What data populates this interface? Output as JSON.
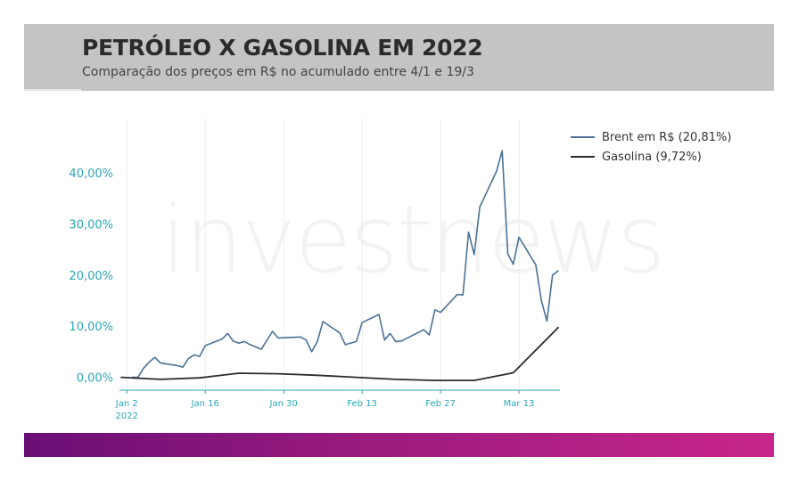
{
  "header": {
    "title": "PETRÓLEO X GASOLINA EM 2022",
    "subtitle": "Comparação dos preços em R$ no acumulado entre 4/1 e 19/3"
  },
  "watermark": "investnews",
  "chart_data": {
    "type": "line",
    "ylim": [
      -2.5,
      48
    ],
    "yticks": [
      0,
      10,
      20,
      30,
      40
    ],
    "ytick_labels": [
      "0,00%",
      "10,00%",
      "20,00%",
      "30,00%",
      "40,00%"
    ],
    "xlim": [
      "2022-01-01",
      "2022-03-20"
    ],
    "xticks": [
      {
        "date": "2022-01-02",
        "label": "Jan 2",
        "label2": "2022"
      },
      {
        "date": "2022-01-16",
        "label": "Jan 16",
        "label2": ""
      },
      {
        "date": "2022-01-30",
        "label": "Jan 30",
        "label2": ""
      },
      {
        "date": "2022-02-13",
        "label": "Feb 13",
        "label2": ""
      },
      {
        "date": "2022-02-27",
        "label": "Feb 27",
        "label2": ""
      },
      {
        "date": "2022-03-13",
        "label": "Mar 13",
        "label2": ""
      }
    ],
    "legend_position": "top-right",
    "series": [
      {
        "name": "Brent em R$ (20,81%)",
        "color": "#4b7297",
        "points": [
          [
            "2022-01-03",
            0.0
          ],
          [
            "2022-01-04",
            0.0
          ],
          [
            "2022-01-05",
            1.8
          ],
          [
            "2022-01-06",
            3.0
          ],
          [
            "2022-01-07",
            3.9
          ],
          [
            "2022-01-08",
            2.8
          ],
          [
            "2022-01-11",
            2.3
          ],
          [
            "2022-01-12",
            2.0
          ],
          [
            "2022-01-13",
            3.7
          ],
          [
            "2022-01-14",
            4.4
          ],
          [
            "2022-01-15",
            4.1
          ],
          [
            "2022-01-16",
            6.2
          ],
          [
            "2022-01-19",
            7.5
          ],
          [
            "2022-01-20",
            8.6
          ],
          [
            "2022-01-21",
            7.1
          ],
          [
            "2022-01-22",
            6.7
          ],
          [
            "2022-01-23",
            7.0
          ],
          [
            "2022-01-24",
            6.4
          ],
          [
            "2022-01-26",
            5.5
          ],
          [
            "2022-01-28",
            9.0
          ],
          [
            "2022-01-29",
            7.7
          ],
          [
            "2022-02-02",
            7.9
          ],
          [
            "2022-02-03",
            7.3
          ],
          [
            "2022-02-04",
            5.0
          ],
          [
            "2022-02-05",
            7.0
          ],
          [
            "2022-02-06",
            10.9
          ],
          [
            "2022-02-09",
            8.7
          ],
          [
            "2022-02-10",
            6.4
          ],
          [
            "2022-02-12",
            7.0
          ],
          [
            "2022-02-13",
            10.7
          ],
          [
            "2022-02-16",
            12.3
          ],
          [
            "2022-02-17",
            7.3
          ],
          [
            "2022-02-18",
            8.6
          ],
          [
            "2022-02-19",
            7.0
          ],
          [
            "2022-02-20",
            7.1
          ],
          [
            "2022-02-24",
            9.3
          ],
          [
            "2022-02-25",
            8.3
          ],
          [
            "2022-02-26",
            13.2
          ],
          [
            "2022-02-27",
            12.7
          ],
          [
            "2022-03-02",
            16.2
          ],
          [
            "2022-03-03",
            16.1
          ],
          [
            "2022-03-04",
            28.4
          ],
          [
            "2022-03-05",
            24.0
          ],
          [
            "2022-03-06",
            33.3
          ],
          [
            "2022-03-09",
            40.3
          ],
          [
            "2022-03-10",
            44.3
          ],
          [
            "2022-03-11",
            24.2
          ],
          [
            "2022-03-12",
            22.1
          ],
          [
            "2022-03-13",
            27.4
          ],
          [
            "2022-03-16",
            22.0
          ],
          [
            "2022-03-17",
            15.0
          ],
          [
            "2022-03-18",
            11.0
          ],
          [
            "2022-03-19",
            20.0
          ],
          [
            "2022-03-20",
            20.81
          ]
        ]
      },
      {
        "name": "Gasolina (9,72%)",
        "color": "#2c2c2c",
        "points": [
          [
            "2022-01-01",
            0.0
          ],
          [
            "2022-01-08",
            -0.4
          ],
          [
            "2022-01-15",
            -0.1
          ],
          [
            "2022-01-22",
            0.8
          ],
          [
            "2022-01-29",
            0.7
          ],
          [
            "2022-02-05",
            0.4
          ],
          [
            "2022-02-12",
            0.0
          ],
          [
            "2022-02-19",
            -0.4
          ],
          [
            "2022-02-26",
            -0.6
          ],
          [
            "2022-03-05",
            -0.6
          ],
          [
            "2022-03-12",
            0.9
          ],
          [
            "2022-03-20",
            9.72
          ]
        ]
      }
    ]
  }
}
